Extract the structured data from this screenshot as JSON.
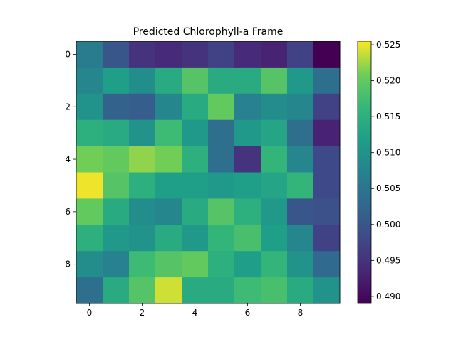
{
  "chart_data": {
    "type": "heatmap",
    "title": "Predicted Chlorophyll-a Frame",
    "xlabel": "",
    "ylabel": "",
    "x_ticks": [
      0,
      2,
      4,
      6,
      8
    ],
    "y_ticks": [
      0,
      2,
      4,
      6,
      8
    ],
    "x_range": [
      -0.5,
      9.5
    ],
    "y_range": [
      9.5,
      -0.5
    ],
    "colormap": "viridis",
    "vmin": 0.489,
    "vmax": 0.5255,
    "colorbar_ticks": [
      "0.490",
      "0.495",
      "0.500",
      "0.505",
      "0.510",
      "0.515",
      "0.520",
      "0.525"
    ],
    "grid": false,
    "values": [
      [
        0.506,
        0.5,
        0.495,
        0.494,
        0.495,
        0.497,
        0.494,
        0.493,
        0.497,
        0.489
      ],
      [
        0.508,
        0.512,
        0.509,
        0.514,
        0.519,
        0.514,
        0.514,
        0.519,
        0.511,
        0.504
      ],
      [
        0.51,
        0.502,
        0.501,
        0.508,
        0.514,
        0.52,
        0.507,
        0.509,
        0.508,
        0.497
      ],
      [
        0.515,
        0.514,
        0.51,
        0.517,
        0.511,
        0.504,
        0.511,
        0.513,
        0.504,
        0.493
      ],
      [
        0.521,
        0.52,
        0.522,
        0.521,
        0.515,
        0.504,
        0.495,
        0.516,
        0.508,
        0.498
      ],
      [
        0.525,
        0.519,
        0.515,
        0.512,
        0.512,
        0.511,
        0.512,
        0.513,
        0.516,
        0.498
      ],
      [
        0.52,
        0.514,
        0.509,
        0.508,
        0.514,
        0.519,
        0.515,
        0.511,
        0.5,
        0.499
      ],
      [
        0.515,
        0.511,
        0.51,
        0.514,
        0.511,
        0.516,
        0.518,
        0.512,
        0.508,
        0.497
      ],
      [
        0.509,
        0.507,
        0.517,
        0.519,
        0.52,
        0.515,
        0.512,
        0.516,
        0.51,
        0.503
      ],
      [
        0.504,
        0.514,
        0.519,
        0.524,
        0.514,
        0.514,
        0.517,
        0.518,
        0.514,
        0.51
      ]
    ]
  }
}
